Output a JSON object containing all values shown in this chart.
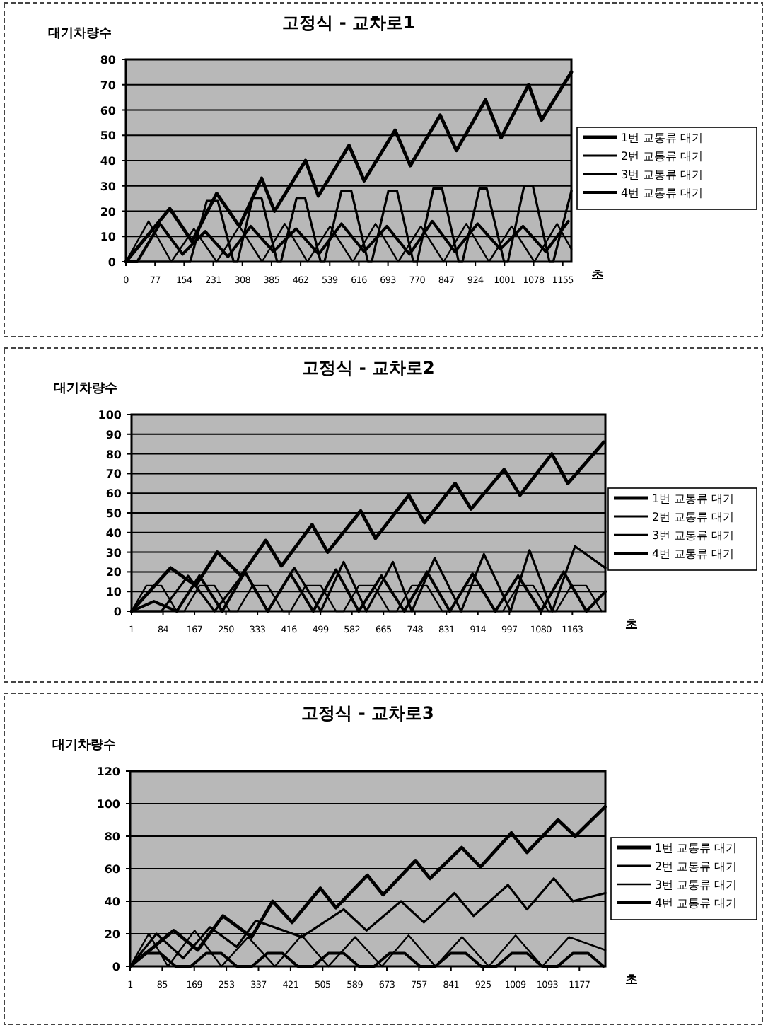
{
  "chart_data": [
    {
      "type": "line",
      "title": "고정식 - 교차로1",
      "ylabel": "대기차량수",
      "xlabel": "초",
      "xlim": [
        0,
        1178
      ],
      "xticks": [
        0,
        77,
        154,
        231,
        308,
        385,
        462,
        539,
        616,
        693,
        770,
        847,
        924,
        1001,
        1078,
        1155
      ],
      "ylim": [
        0,
        80
      ],
      "yticks": [
        0,
        10,
        20,
        30,
        40,
        50,
        60,
        70,
        80
      ],
      "grid": "y",
      "legend": "right",
      "marker": "none",
      "series": [
        {
          "name": "1번 교통류 대기",
          "color": "#000000",
          "x": [
            0,
            116,
            175,
            240,
            300,
            359,
            393,
            475,
            509,
            590,
            630,
            712,
            752,
            831,
            874,
            951,
            992,
            1065,
            1099,
            1178
          ],
          "values": [
            0,
            21,
            8,
            27,
            14,
            33,
            20,
            40,
            26,
            46,
            32,
            52,
            38,
            58,
            44,
            64,
            49,
            70,
            56,
            75
          ]
        },
        {
          "name": "2번 교통류 대기",
          "color": "#000000",
          "x": [
            0,
            170,
            214,
            243,
            285,
            295,
            335,
            359,
            400,
            410,
            451,
            474,
            515,
            525,
            570,
            596,
            640,
            650,
            694,
            717,
            760,
            770,
            813,
            836,
            880,
            890,
            935,
            954,
            1000,
            1010,
            1053,
            1076,
            1120,
            1130,
            1178
          ],
          "values": [
            0,
            0,
            24,
            24,
            0,
            0,
            25,
            25,
            0,
            0,
            25,
            25,
            0,
            0,
            28,
            28,
            0,
            0,
            28,
            28,
            0,
            0,
            29,
            29,
            0,
            0,
            29,
            29,
            0,
            0,
            30,
            30,
            0,
            0,
            28
          ]
        },
        {
          "name": "3번 교통류 대기",
          "color": "#000000",
          "x": [
            0,
            60,
            120,
            180,
            240,
            300,
            360,
            420,
            480,
            540,
            600,
            660,
            720,
            780,
            840,
            900,
            960,
            1020,
            1080,
            1140,
            1178
          ],
          "values": [
            0,
            16,
            0,
            13,
            0,
            14,
            0,
            15,
            0,
            14,
            0,
            15,
            0,
            14,
            0,
            15,
            0,
            14,
            0,
            15,
            5
          ]
        },
        {
          "name": "4번 교통류 대기",
          "color": "#000000",
          "x": [
            0,
            30,
            90,
            150,
            210,
            270,
            330,
            390,
            450,
            510,
            570,
            630,
            690,
            750,
            810,
            870,
            930,
            990,
            1050,
            1110,
            1170
          ],
          "values": [
            0,
            0,
            15,
            3,
            12,
            2,
            14,
            4,
            13,
            3,
            15,
            4,
            14,
            3,
            16,
            4,
            15,
            5,
            14,
            4,
            16
          ]
        }
      ]
    },
    {
      "type": "line",
      "title": "고정식 - 교차로2",
      "ylabel": "대기차량수",
      "xlabel": "초",
      "xlim": [
        1,
        1250
      ],
      "xticks": [
        1,
        84,
        167,
        250,
        333,
        416,
        499,
        582,
        665,
        748,
        831,
        914,
        997,
        1080,
        1163
      ],
      "ylim": [
        0,
        100
      ],
      "yticks": [
        0,
        10,
        20,
        30,
        40,
        50,
        60,
        70,
        80,
        90,
        100
      ],
      "grid": "y",
      "legend": "right",
      "marker": "none",
      "series": [
        {
          "name": "1번 교통류 대기",
          "color": "#000000",
          "x": [
            1,
            104,
            170,
            227,
            290,
            355,
            396,
            477,
            518,
            605,
            644,
            732,
            773,
            854,
            896,
            983,
            1025,
            1109,
            1151,
            1246
          ],
          "values": [
            0,
            22,
            13,
            30,
            18,
            36,
            23,
            44,
            30,
            51,
            37,
            59,
            45,
            65,
            52,
            72,
            59,
            80,
            65,
            86
          ]
        },
        {
          "name": "2번 교통류 대기",
          "color": "#000000",
          "x": [
            1,
            80,
            150,
            220,
            300,
            360,
            430,
            500,
            560,
            620,
            690,
            740,
            800,
            870,
            930,
            1000,
            1050,
            1110,
            1170,
            1250
          ],
          "values": [
            0,
            0,
            18,
            0,
            20,
            0,
            22,
            0,
            25,
            0,
            25,
            0,
            27,
            0,
            29,
            0,
            31,
            0,
            33,
            22
          ]
        },
        {
          "name": "3번 교통류 대기",
          "color": "#000000",
          "x": [
            1,
            40,
            80,
            120,
            140,
            180,
            220,
            260,
            280,
            320,
            360,
            400,
            420,
            460,
            500,
            540,
            560,
            600,
            640,
            680,
            700,
            740,
            780,
            820,
            840,
            880,
            920,
            960,
            980,
            1020,
            1060,
            1100,
            1120,
            1160,
            1200,
            1240
          ],
          "values": [
            0,
            13,
            13,
            0,
            0,
            13,
            13,
            0,
            0,
            13,
            13,
            0,
            0,
            13,
            13,
            0,
            0,
            13,
            13,
            0,
            0,
            13,
            13,
            0,
            0,
            13,
            13,
            0,
            0,
            13,
            13,
            0,
            0,
            13,
            13,
            0
          ]
        },
        {
          "name": "4번 교통류 대기",
          "color": "#000000",
          "x": [
            1,
            60,
            120,
            180,
            240,
            300,
            360,
            420,
            480,
            540,
            600,
            660,
            720,
            780,
            840,
            900,
            960,
            1020,
            1080,
            1140,
            1200,
            1250
          ],
          "values": [
            0,
            5,
            0,
            18,
            0,
            20,
            0,
            19,
            0,
            21,
            0,
            18,
            0,
            20,
            0,
            19,
            0,
            18,
            0,
            20,
            0,
            10
          ]
        }
      ]
    },
    {
      "type": "line",
      "title": "고정식 - 교차로3",
      "ylabel": "대기차량수",
      "xlabel": "초",
      "xlim": [
        1,
        1245
      ],
      "xticks": [
        1,
        85,
        169,
        253,
        337,
        421,
        505,
        589,
        673,
        757,
        841,
        925,
        1009,
        1093,
        1177
      ],
      "ylim": [
        0,
        120
      ],
      "yticks": [
        0,
        20,
        40,
        60,
        80,
        100,
        120
      ],
      "grid": "y",
      "legend": "right",
      "marker": "none",
      "series": [
        {
          "name": "1번 교통류 대기",
          "color": "#000000",
          "x": [
            1,
            115,
            178,
            244,
            319,
            374,
            425,
            499,
            540,
            622,
            663,
            748,
            786,
            869,
            918,
            999,
            1040,
            1121,
            1166,
            1244
          ],
          "values": [
            0,
            22,
            10,
            31,
            18,
            40,
            27,
            48,
            36,
            56,
            44,
            65,
            54,
            73,
            61,
            82,
            70,
            90,
            80,
            98
          ]
        },
        {
          "name": "2번 교통류 대기",
          "color": "#000000",
          "x": [
            1,
            70,
            140,
            210,
            280,
            330,
            450,
            560,
            620,
            710,
            770,
            850,
            900,
            990,
            1040,
            1110,
            1160,
            1245
          ],
          "values": [
            0,
            20,
            5,
            24,
            12,
            28,
            18,
            35,
            22,
            40,
            27,
            45,
            31,
            50,
            35,
            54,
            40,
            45
          ]
        },
        {
          "name": "3번 교통류 대기",
          "color": "#000000",
          "x": [
            1,
            50,
            100,
            170,
            240,
            310,
            380,
            450,
            520,
            590,
            660,
            730,
            800,
            870,
            940,
            1010,
            1080,
            1150,
            1245
          ],
          "values": [
            0,
            20,
            0,
            22,
            0,
            18,
            0,
            19,
            0,
            18,
            0,
            19,
            0,
            18,
            0,
            19,
            0,
            18,
            10
          ]
        },
        {
          "name": "4번 교통류 대기",
          "color": "#000000",
          "x": [
            1,
            40,
            80,
            120,
            160,
            200,
            240,
            280,
            320,
            360,
            400,
            440,
            480,
            520,
            560,
            600,
            640,
            680,
            720,
            760,
            800,
            840,
            880,
            920,
            960,
            1000,
            1040,
            1080,
            1120,
            1160,
            1200,
            1240
          ],
          "values": [
            0,
            8,
            8,
            0,
            0,
            8,
            8,
            0,
            0,
            8,
            8,
            0,
            0,
            8,
            8,
            0,
            0,
            8,
            8,
            0,
            0,
            8,
            8,
            0,
            0,
            8,
            8,
            0,
            0,
            8,
            8,
            0
          ]
        }
      ]
    }
  ]
}
